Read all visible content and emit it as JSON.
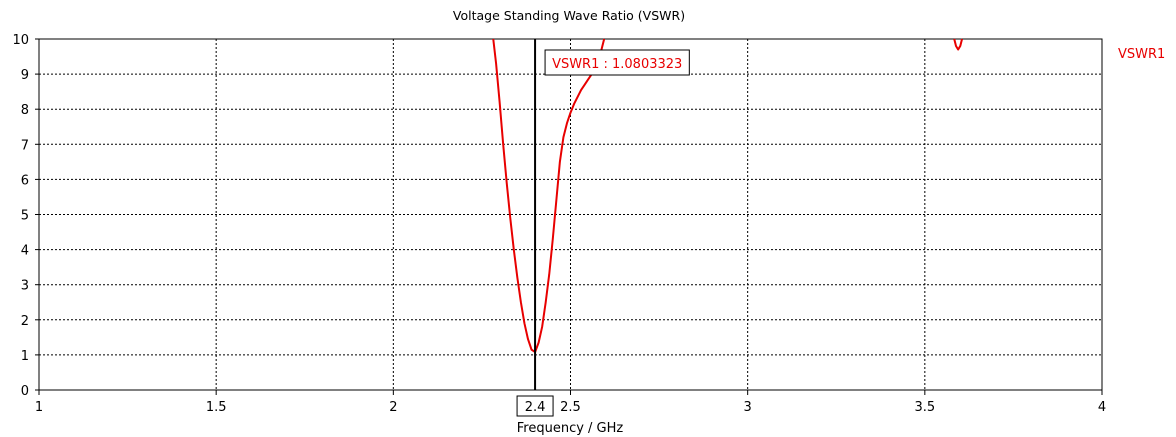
{
  "chart_data": {
    "type": "line",
    "title": "Voltage Standing Wave Ratio (VSWR)",
    "xlabel": "Frequency / GHz",
    "ylabel": "",
    "xlim": [
      1,
      4
    ],
    "ylim": [
      0,
      10
    ],
    "x_ticks": [
      "1",
      "1.5",
      "2",
      "2.5",
      "3",
      "3.5",
      "4"
    ],
    "y_ticks": [
      "0",
      "1",
      "2",
      "3",
      "4",
      "5",
      "6",
      "7",
      "8",
      "9",
      "10"
    ],
    "grid": true,
    "grid_style": "dotted",
    "legend": {
      "position": "right",
      "entries": [
        "VSWR1"
      ]
    },
    "series": [
      {
        "name": "VSWR1",
        "color": "#e80000",
        "segments": [
          [
            [
              2.282,
              10.0
            ],
            [
              2.29,
              9.3
            ],
            [
              2.3,
              8.2
            ],
            [
              2.31,
              7.0
            ],
            [
              2.32,
              5.9
            ],
            [
              2.33,
              4.9
            ],
            [
              2.34,
              4.0
            ],
            [
              2.35,
              3.2
            ],
            [
              2.36,
              2.5
            ],
            [
              2.37,
              1.9
            ],
            [
              2.38,
              1.45
            ],
            [
              2.39,
              1.15
            ],
            [
              2.4,
              1.08
            ],
            [
              2.41,
              1.35
            ],
            [
              2.42,
              1.8
            ],
            [
              2.43,
              2.5
            ],
            [
              2.44,
              3.3
            ],
            [
              2.45,
              4.3
            ],
            [
              2.46,
              5.4
            ],
            [
              2.47,
              6.5
            ],
            [
              2.48,
              7.2
            ],
            [
              2.49,
              7.6
            ],
            [
              2.5,
              7.9
            ],
            [
              2.51,
              8.15
            ],
            [
              2.52,
              8.35
            ],
            [
              2.53,
              8.55
            ],
            [
              2.54,
              8.7
            ],
            [
              2.55,
              8.85
            ],
            [
              2.56,
              9.0
            ],
            [
              2.57,
              9.2
            ],
            [
              2.58,
              9.45
            ],
            [
              2.585,
              9.6
            ],
            [
              2.59,
              9.8
            ],
            [
              2.595,
              10.0
            ]
          ],
          [
            [
              3.583,
              10.0
            ],
            [
              3.588,
              9.8
            ],
            [
              3.594,
              9.7
            ],
            [
              3.6,
              9.8
            ],
            [
              3.605,
              10.0
            ]
          ]
        ]
      }
    ],
    "marker": {
      "x": 2.4,
      "x_label": "2.4",
      "label": "VSWR1 : 1.0803323",
      "value": 1.0803323
    }
  }
}
